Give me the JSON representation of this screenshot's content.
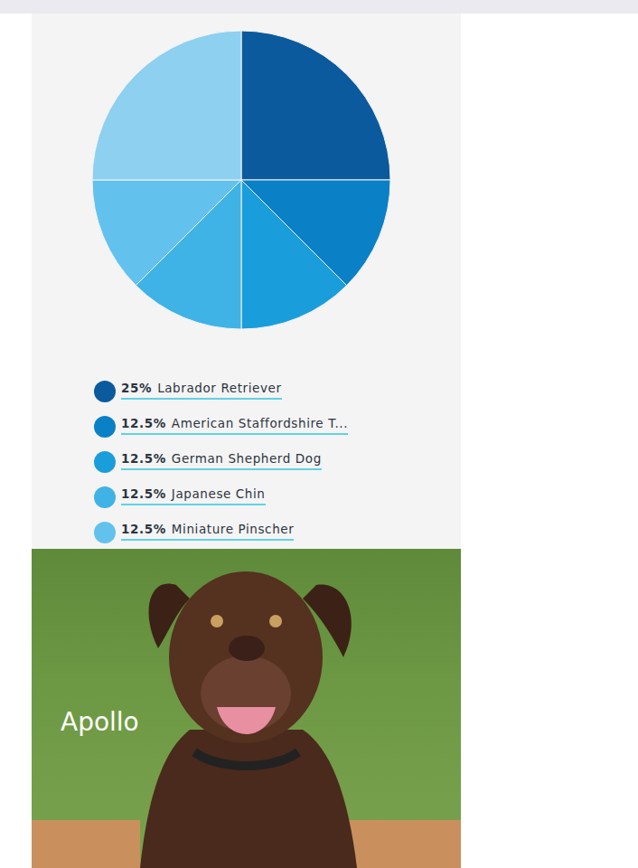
{
  "chart_data": {
    "type": "pie",
    "categories": [
      "Labrador Retriever",
      "American Staffordshire T...",
      "German Shepherd Dog",
      "Japanese Chin",
      "Miniature Pinscher",
      null
    ],
    "values": [
      25,
      12.5,
      12.5,
      12.5,
      12.5,
      25
    ],
    "value_labels": [
      "25%",
      "12.5%",
      "12.5%",
      "12.5%",
      "12.5%",
      null
    ],
    "colors": [
      "#0b5a9e",
      "#0a80c6",
      "#1a9ddb",
      "#3fb2e6",
      "#62c2ed",
      "#8dd0f0"
    ],
    "legend": "bottom"
  },
  "photo": {
    "caption": "Apollo"
  }
}
